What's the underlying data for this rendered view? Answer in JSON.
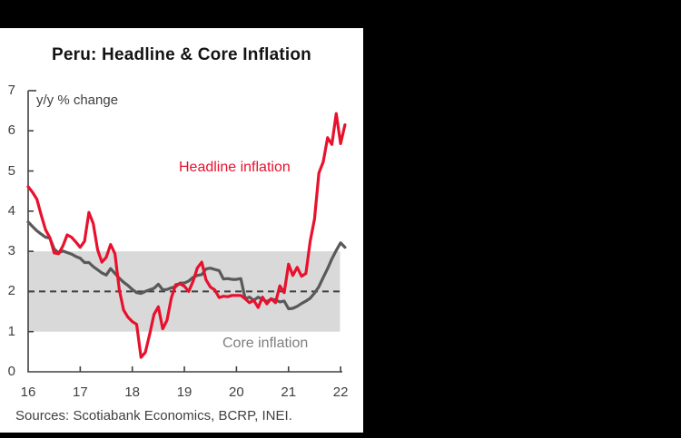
{
  "title": "Peru: Headline & Core Inflation",
  "source": "Sources: Scotiabank Economics, BCRP, INEI.",
  "annotations": {
    "headline_label": "Headline inflation",
    "core_label": "Core inflation"
  },
  "colors": {
    "background": "#000000",
    "card": "#ffffff",
    "headline": "#e8112d",
    "core": "#595959",
    "band": "#d9d9d9",
    "dashed": "#3f3f3f",
    "axis": "#404040",
    "tick_text": "#404040",
    "core_label_text": "#7f7f7f",
    "title_text": "#141414"
  },
  "chart_data": {
    "type": "line",
    "title": "Peru: Headline & Core Inflation",
    "xlabel": "",
    "ylabel": "y/y % change",
    "ylim": [
      0,
      7
    ],
    "y_ticks": [
      0,
      1,
      2,
      3,
      4,
      5,
      6,
      7
    ],
    "x_ticks": [
      "16",
      "17",
      "18",
      "19",
      "20",
      "21",
      "22"
    ],
    "x_start": "2016-01",
    "x_end": "2022-02",
    "frequency": "monthly",
    "grid": false,
    "legend_position": "inline-annotations",
    "target_band": [
      1,
      3
    ],
    "target_midline": 2,
    "series": [
      {
        "name": "Headline inflation",
        "color": "#e8112d",
        "values": [
          4.61,
          4.47,
          4.3,
          3.91,
          3.54,
          3.34,
          2.96,
          2.94,
          3.13,
          3.41,
          3.35,
          3.23,
          3.1,
          3.25,
          3.97,
          3.69,
          3.04,
          2.73,
          2.85,
          3.17,
          2.94,
          2.04,
          1.54,
          1.36,
          1.25,
          1.18,
          0.36,
          0.48,
          0.93,
          1.43,
          1.62,
          1.07,
          1.28,
          1.84,
          2.17,
          2.19,
          2.13,
          2.0,
          2.25,
          2.59,
          2.73,
          2.29,
          2.11,
          2.04,
          1.85,
          1.88,
          1.87,
          1.9,
          1.9,
          1.9,
          1.82,
          1.72,
          1.78,
          1.6,
          1.86,
          1.69,
          1.82,
          1.72,
          2.14,
          1.97,
          2.68,
          2.4,
          2.6,
          2.38,
          2.45,
          3.25,
          3.81,
          4.95,
          5.23,
          5.83,
          5.66,
          6.43,
          5.68,
          6.15
        ]
      },
      {
        "name": "Core inflation",
        "color": "#595959",
        "values": [
          3.73,
          3.62,
          3.51,
          3.43,
          3.35,
          3.33,
          3.06,
          2.96,
          3.01,
          2.97,
          2.93,
          2.87,
          2.83,
          2.72,
          2.72,
          2.62,
          2.54,
          2.46,
          2.41,
          2.57,
          2.45,
          2.33,
          2.23,
          2.15,
          2.05,
          1.97,
          1.95,
          2.0,
          2.04,
          2.08,
          2.18,
          2.04,
          2.05,
          2.09,
          2.12,
          2.21,
          2.21,
          2.26,
          2.35,
          2.4,
          2.42,
          2.56,
          2.58,
          2.55,
          2.52,
          2.31,
          2.32,
          2.3,
          2.3,
          2.32,
          1.82,
          1.86,
          1.78,
          1.86,
          1.8,
          1.75,
          1.81,
          1.79,
          1.74,
          1.76,
          1.57,
          1.58,
          1.63,
          1.7,
          1.76,
          1.83,
          1.96,
          2.12,
          2.35,
          2.57,
          2.81,
          3.02,
          3.21,
          3.1
        ]
      }
    ]
  }
}
